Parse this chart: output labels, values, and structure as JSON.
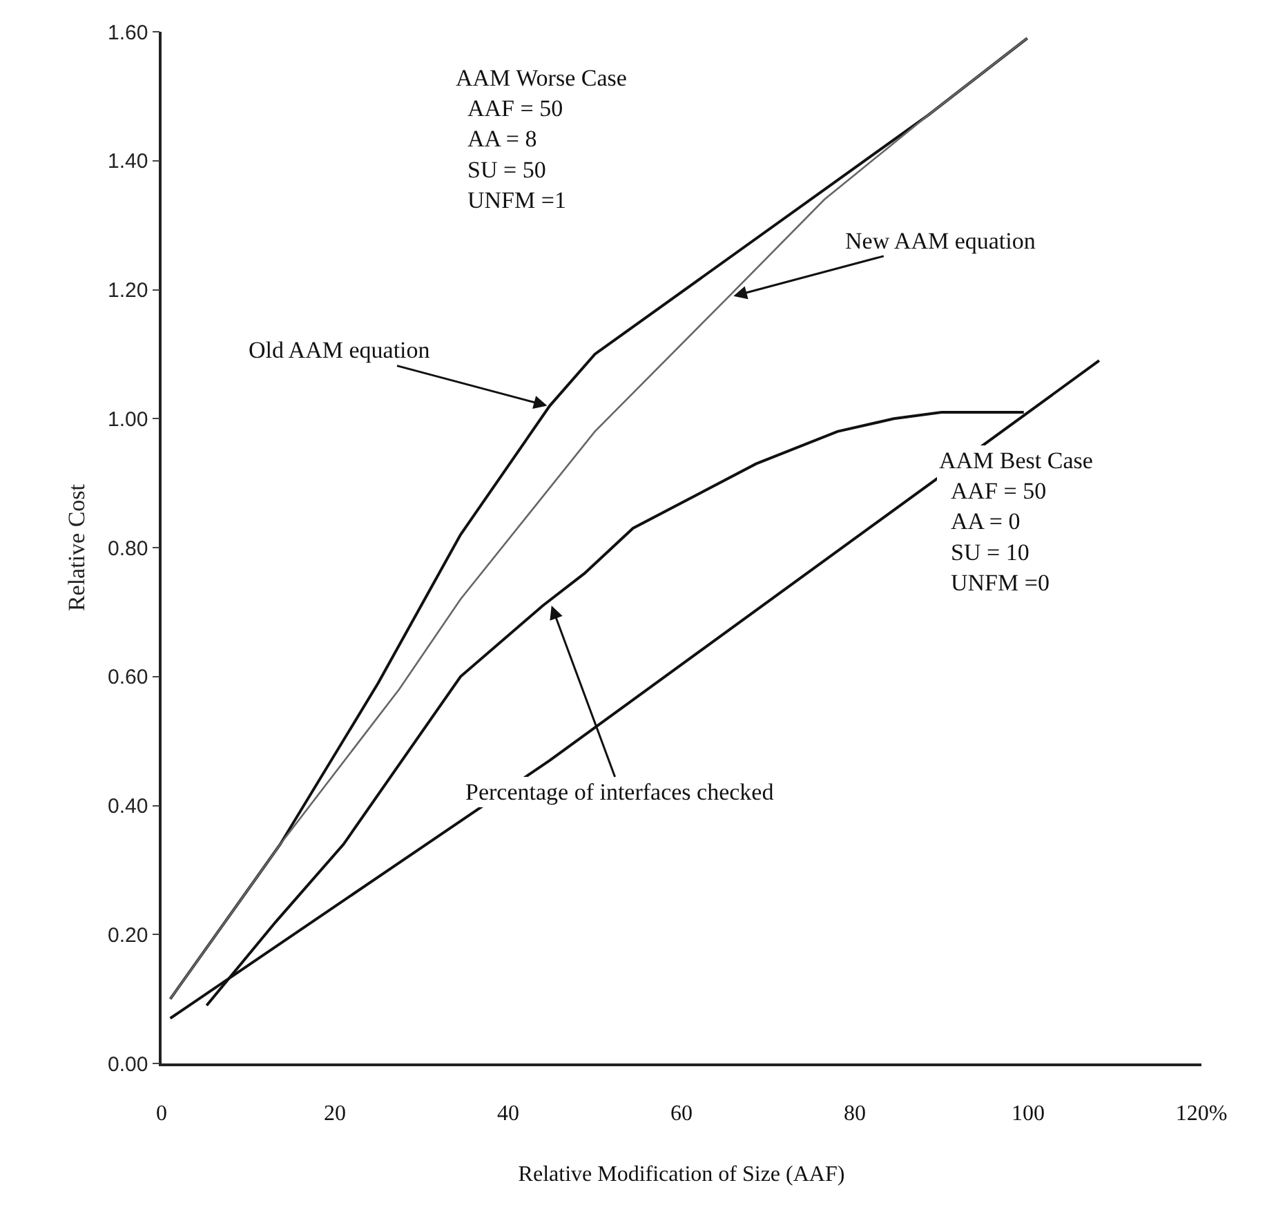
{
  "chart_data": {
    "type": "line",
    "xlabel": "Relative Modification of Size (AAF)",
    "ylabel": "Relative Cost",
    "xlim": [
      0,
      120
    ],
    "xticks": [
      {
        "value": 0,
        "label": "0"
      },
      20,
      40,
      60,
      80,
      100,
      {
        "value": 120,
        "label": "120%"
      }
    ],
    "ylim": [
      0,
      1.6
    ],
    "yticks": [
      {
        "value": 0,
        "label": "0.00"
      },
      {
        "value": 0.2,
        "label": "0.20"
      },
      {
        "value": 0.4,
        "label": "0.40"
      },
      {
        "value": 0.6,
        "label": "0.60"
      },
      {
        "value": 0.8,
        "label": "0.80"
      },
      {
        "value": 1.0,
        "label": "1.00"
      },
      {
        "value": 1.2,
        "label": "1.20"
      },
      {
        "value": 1.4,
        "label": "1.40"
      },
      {
        "value": 1.6,
        "label": "1.60"
      }
    ],
    "marker": "none",
    "line_style": "solid",
    "series": [
      {
        "color": "#111111",
        "x": [
          1,
          13.7,
          25,
          34.5,
          44.8,
          50,
          88.4,
          99.9
        ],
        "values": [
          0.1,
          0.34,
          0.59,
          0.82,
          1.02,
          1.1,
          1.47,
          1.59
        ]
      },
      {
        "color": "#666666",
        "x": [
          1,
          13.7,
          27.4,
          34.5,
          50,
          65.5,
          76.5,
          88.4,
          99.9
        ],
        "values": [
          0.1,
          0.34,
          0.58,
          0.72,
          0.98,
          1.19,
          1.34,
          1.47,
          1.59
        ]
      },
      {
        "color": "#111111",
        "x": [
          5.2,
          13.2,
          21,
          34.5,
          44,
          48.8,
          54.4,
          68.6,
          78,
          84.5,
          90,
          99.5
        ],
        "values": [
          0.09,
          0.22,
          0.34,
          0.6,
          0.71,
          0.76,
          0.83,
          0.93,
          0.98,
          1.0,
          1.01,
          1.01
        ]
      },
      {
        "color": "#111111",
        "x": [
          1,
          44.8,
          108.2
        ],
        "values": [
          0.07,
          0.47,
          1.09
        ]
      }
    ],
    "annotations": [
      "AAM Worse Case\n  AAF = 50\n  AA = 8\n  SU = 50\n  UNFM =1",
      "AAM Best Case\n  AAF = 50\n  AA = 0\n  SU = 10\n  UNFM =0",
      {
        "text": "Old AAM equation",
        "x": 44.5,
        "y": 1.02
      },
      {
        "text": "New AAM equation",
        "x": 66,
        "y": 1.19
      },
      {
        "text": "Percentage of interfaces checked",
        "x": 45,
        "y": 0.71
      }
    ]
  }
}
